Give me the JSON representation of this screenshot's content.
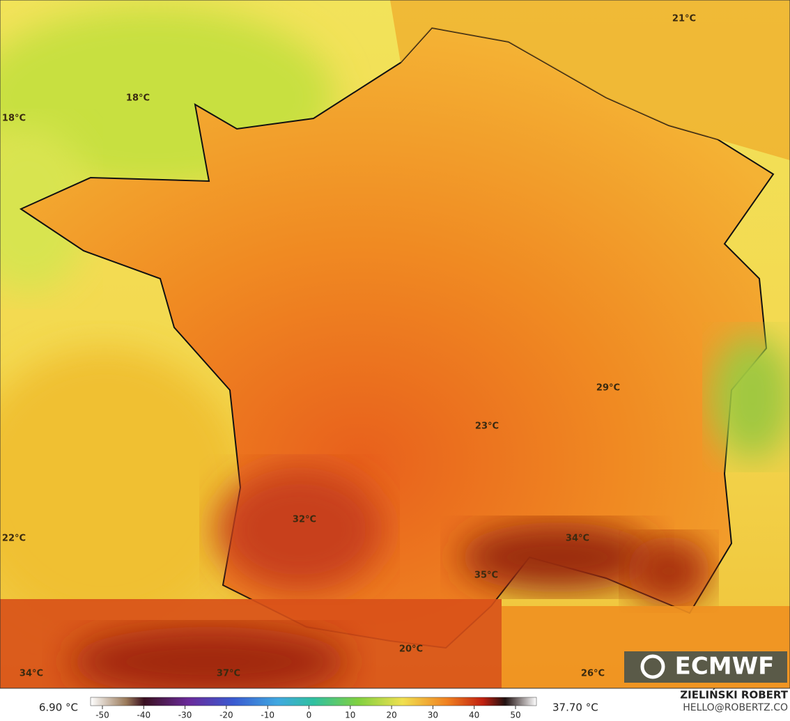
{
  "map": {
    "temperature_labels": [
      "18°C",
      "18°C",
      "21°C",
      "29°C",
      "23°C",
      "32°C",
      "34°C",
      "35°C",
      "22°C",
      "20°C",
      "34°C",
      "37°C",
      "26°C"
    ],
    "logo": "ECMWF",
    "colorbar": {
      "min_label": "6.90 °C",
      "max_label": "37.70 °C",
      "ticks": [
        -50,
        -40,
        -30,
        -20,
        -10,
        0,
        10,
        20,
        30,
        40,
        50
      ]
    },
    "credit": {
      "author": "ZIELIŃSKI ROBERT",
      "contact": "HELLO@ROBERTZ.CO"
    }
  }
}
